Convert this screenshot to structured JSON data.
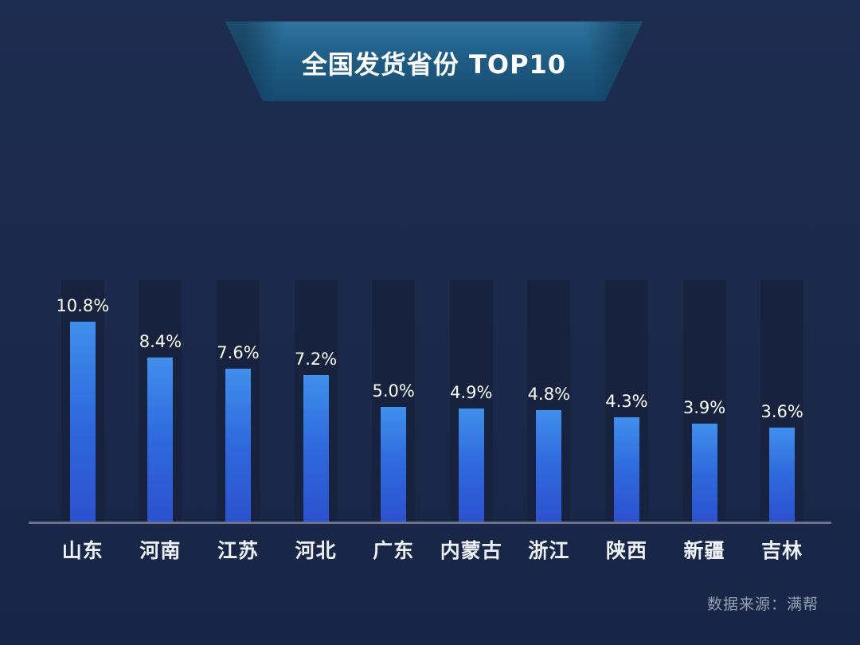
{
  "title": {
    "text": "全国发货省份 TOP10"
  },
  "source": {
    "text": "数据来源：满帮"
  },
  "chart_data": {
    "type": "bar",
    "title": "全国发货省份 TOP10",
    "categories": [
      "山东",
      "河南",
      "江苏",
      "河北",
      "广东",
      "内蒙古",
      "浙江",
      "陕西",
      "新疆",
      "吉林"
    ],
    "values": [
      10.8,
      8.4,
      7.6,
      7.2,
      5.0,
      4.9,
      4.8,
      4.3,
      3.9,
      3.6
    ],
    "value_labels": [
      "10.8%",
      "8.4%",
      "7.6%",
      "7.2%",
      "5.0%",
      "4.9%",
      "4.8%",
      "4.3%",
      "3.9%",
      "3.6%"
    ],
    "unit": "%",
    "xlabel": "",
    "ylabel": "",
    "ylim": [
      0,
      12
    ],
    "grid": false,
    "legend": false,
    "baseline_axis": true,
    "data_labels_position": "above-bar",
    "source_note": "数据来源：满帮"
  },
  "colors": {
    "background": "#1b2a4b",
    "column_shadow": "#16223e",
    "bar_gradient_top": "#3f8fec",
    "bar_gradient_bottom": "#2b51cf",
    "axis_line": "#6b7386",
    "banner_gradient_top": "#2f75a0",
    "banner_gradient_bottom": "#154a6f",
    "title_text": "#ffffff",
    "value_label_text": "#ffffff",
    "category_label_text": "#eef2f8",
    "source_text": "#98a0b2"
  }
}
